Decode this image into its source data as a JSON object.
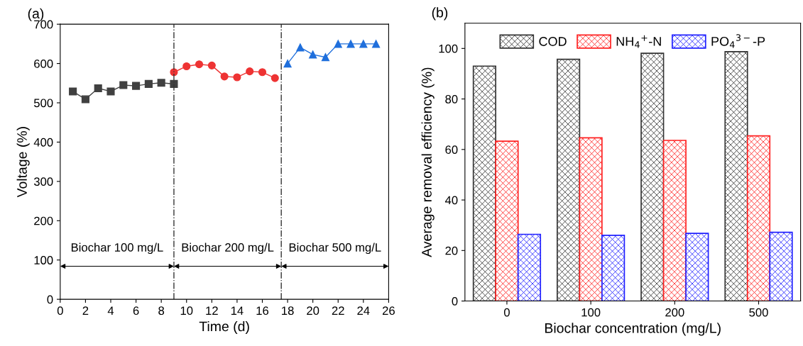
{
  "chart_data": [
    {
      "type": "line",
      "title": "(a)",
      "xlabel": "Time (d)",
      "ylabel": "Voltage (%)",
      "xlim": [
        0,
        26
      ],
      "xticks": [
        0,
        2,
        4,
        6,
        8,
        10,
        12,
        14,
        16,
        18,
        20,
        22,
        24,
        26
      ],
      "ylim": [
        0,
        700
      ],
      "yticks": [
        0,
        100,
        200,
        300,
        400,
        500,
        600,
        700
      ],
      "grid": false,
      "series": [
        {
          "color": "#404040",
          "marker": "square",
          "x": [
            1,
            2,
            3,
            4,
            5,
            6,
            7,
            8,
            9
          ],
          "values": [
            529,
            509,
            537,
            529,
            545,
            543,
            548,
            551,
            548
          ]
        },
        {
          "color": "#ee3333",
          "marker": "circle",
          "x": [
            9,
            10,
            11,
            12,
            13,
            14,
            15,
            16,
            17
          ],
          "values": [
            578,
            593,
            598,
            595,
            567,
            565,
            580,
            578,
            563
          ]
        },
        {
          "color": "#1f6fdc",
          "marker": "triangle",
          "x": [
            18,
            19,
            20,
            21,
            22,
            23,
            24,
            25
          ],
          "values": [
            600,
            641,
            623,
            616,
            650,
            650,
            650,
            650
          ]
        }
      ],
      "ref_lines": [
        {
          "axis": "x",
          "value": 9,
          "color": "#333333",
          "line_style": "dashdot"
        },
        {
          "axis": "x",
          "value": 17.5,
          "color": "#333333",
          "line_style": "dashdot"
        }
      ],
      "annotations": [
        "Biochar 100 mg/L",
        "Biochar 200 mg/L",
        "Biochar 500 mg/L"
      ]
    },
    {
      "type": "bar",
      "title": "(b)",
      "xlabel": "Biochar concentration (mg/L)",
      "ylabel": "Average removal efficiency (%)",
      "categories": [
        "0",
        "100",
        "200",
        "500"
      ],
      "ylim": [
        0,
        110
      ],
      "yticks": [
        0,
        20,
        40,
        60,
        80,
        100
      ],
      "grid": false,
      "legend": "top",
      "series": [
        {
          "name": "COD",
          "color": "#333333",
          "values": [
            93.0,
            95.7,
            98.1,
            98.7
          ]
        },
        {
          "name": "NH$_{4}$$^{+}$-N",
          "color": "#ff2020",
          "values": [
            63.3,
            64.6,
            63.6,
            65.4
          ]
        },
        {
          "name": "PO$_{4}$$^{3−}$-P",
          "color": "#2020ff",
          "values": [
            26.4,
            26.0,
            26.8,
            27.2
          ]
        }
      ]
    }
  ]
}
